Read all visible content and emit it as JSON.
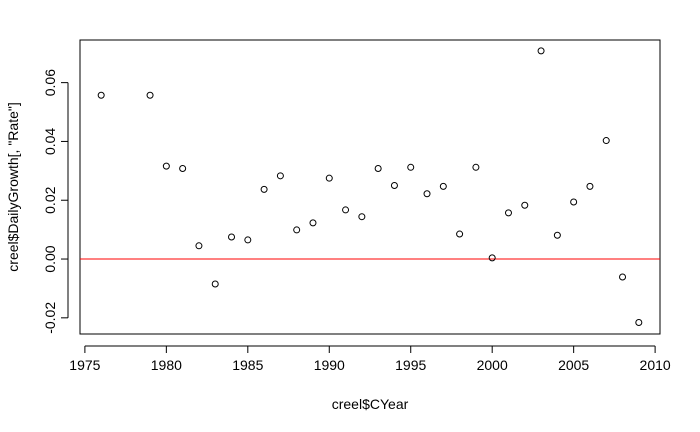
{
  "chart_data": {
    "type": "scatter",
    "xlabel": "creel$CYear",
    "ylabel": "creel$DailyGrowth[, \"Rate\"]",
    "xlim": [
      1975,
      2010
    ],
    "ylim": [
      -0.025,
      0.075
    ],
    "xticks": [
      1975,
      1980,
      1985,
      1990,
      1995,
      2000,
      2005,
      2010
    ],
    "yticks": [
      -0.02,
      0.0,
      0.02,
      0.04,
      0.06
    ],
    "ytick_labels": [
      "-0.02",
      "0.00",
      "0.02",
      "0.04",
      "0.06"
    ],
    "hline": {
      "y": 0,
      "color": "#ff0000"
    },
    "point_style": "open-circle",
    "x": [
      1976,
      1979,
      1980,
      1981,
      1982,
      1983,
      1984,
      1985,
      1986,
      1987,
      1988,
      1989,
      1990,
      1991,
      1992,
      1993,
      1994,
      1995,
      1996,
      1997,
      1998,
      1999,
      2000,
      2001,
      2002,
      2003,
      2004,
      2005,
      2006,
      2007,
      2008,
      2009
    ],
    "y": [
      0.0557,
      0.0557,
      0.0316,
      0.0308,
      0.0045,
      -0.0085,
      0.0075,
      0.0065,
      0.0237,
      0.0283,
      0.0099,
      0.0123,
      0.0275,
      0.0167,
      0.0144,
      0.0308,
      0.025,
      0.0312,
      0.0222,
      0.0247,
      0.0085,
      0.0312,
      0.0004,
      0.0157,
      0.0183,
      0.0708,
      0.0081,
      0.0194,
      0.0247,
      0.0403,
      -0.0061,
      -0.0216
    ]
  }
}
